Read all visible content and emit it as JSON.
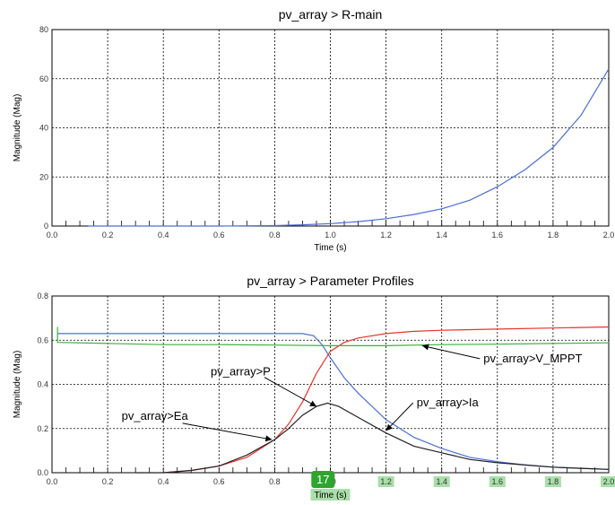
{
  "chart_data": [
    {
      "type": "line",
      "title": "pv_array > R-main",
      "xlabel": "Time (s)",
      "ylabel": "Magnitude (Mag)",
      "xlim": [
        0,
        2
      ],
      "ylim": [
        0,
        80
      ],
      "xticks": [
        "0.0",
        "0.2",
        "0.4",
        "0.6",
        "0.8",
        "1.0",
        "1.2",
        "1.4",
        "1.6",
        "1.8",
        "2.0"
      ],
      "yticks": [
        "0",
        "20",
        "40",
        "60",
        "80"
      ],
      "grid": true,
      "series": [
        {
          "color": "#4a6fd6",
          "x": [
            0.13,
            0.2,
            0.4,
            0.6,
            0.8,
            0.9,
            1.0,
            1.1,
            1.2,
            1.3,
            1.4,
            1.5,
            1.6,
            1.7,
            1.8,
            1.9,
            2.0
          ],
          "y": [
            0.0,
            0.0,
            0.0,
            0.0,
            0.2,
            0.5,
            1.0,
            1.8,
            3.0,
            4.7,
            7.0,
            10.5,
            16.0,
            23.0,
            32.0,
            45.0,
            64.0
          ]
        }
      ]
    },
    {
      "type": "line",
      "title": "pv_array > Parameter Profiles",
      "xlabel": "Time (s)",
      "ylabel": "Magnitude (Mag)",
      "xlim": [
        0,
        2
      ],
      "ylim": [
        0,
        0.8
      ],
      "xticks": [
        "0.0",
        "0.2",
        "0.4",
        "0.6",
        "0.8",
        "1.0",
        "1.2",
        "1.4",
        "1.6",
        "1.8",
        "2.0"
      ],
      "yticks": [
        "0.0",
        "0.2",
        "0.4",
        "0.6",
        "0.8"
      ],
      "grid": true,
      "series": [
        {
          "color": "#4a6fd6",
          "x": [
            0.02,
            0.2,
            0.4,
            0.6,
            0.8,
            0.9,
            0.94,
            0.97,
            1.0,
            1.05,
            1.1,
            1.2,
            1.3,
            1.4,
            1.5,
            1.6,
            1.7,
            1.8,
            1.9,
            2.0
          ],
          "y": [
            0.63,
            0.63,
            0.63,
            0.63,
            0.63,
            0.63,
            0.62,
            0.58,
            0.52,
            0.43,
            0.36,
            0.24,
            0.16,
            0.11,
            0.07,
            0.05,
            0.035,
            0.025,
            0.02,
            0.015
          ]
        },
        {
          "color": "#e8342a",
          "x": [
            0.4,
            0.5,
            0.6,
            0.7,
            0.8,
            0.85,
            0.9,
            0.95,
            1.0,
            1.05,
            1.1,
            1.2,
            1.3,
            1.4,
            1.6,
            1.8,
            2.0
          ],
          "y": [
            0.0,
            0.01,
            0.03,
            0.07,
            0.15,
            0.22,
            0.32,
            0.45,
            0.55,
            0.59,
            0.61,
            0.63,
            0.64,
            0.645,
            0.65,
            0.655,
            0.66
          ]
        },
        {
          "color": "#3db03d",
          "x": [
            0.02,
            0.02,
            0.2,
            0.4,
            0.6,
            0.8,
            1.0,
            1.2,
            1.4,
            1.6,
            1.8,
            2.0
          ],
          "y": [
            0.66,
            0.59,
            0.585,
            0.58,
            0.58,
            0.578,
            0.575,
            0.575,
            0.58,
            0.582,
            0.585,
            0.588
          ]
        },
        {
          "color": "#222222",
          "x": [
            0.3,
            0.4,
            0.5,
            0.6,
            0.7,
            0.8,
            0.85,
            0.9,
            0.95,
            0.99,
            1.03,
            1.1,
            1.2,
            1.3,
            1.4,
            1.5,
            1.6,
            1.7,
            1.8,
            1.9,
            2.0
          ],
          "y": [
            0.0,
            0.0,
            0.01,
            0.03,
            0.08,
            0.15,
            0.2,
            0.26,
            0.3,
            0.315,
            0.3,
            0.25,
            0.18,
            0.12,
            0.09,
            0.06,
            0.045,
            0.035,
            0.025,
            0.02,
            0.015
          ]
        }
      ],
      "annotations": [
        {
          "text": "pv_array>V_MPPT",
          "point": [
            1.33,
            0.575
          ],
          "label": [
            1.55,
            0.5
          ]
        },
        {
          "text": "pv_array>P",
          "point": [
            0.95,
            0.3
          ],
          "label": [
            0.57,
            0.44
          ]
        },
        {
          "text": "pv_array>Ea",
          "point": [
            0.79,
            0.15
          ],
          "label": [
            0.25,
            0.24
          ]
        },
        {
          "text": "pv_array>Ia",
          "point": [
            1.2,
            0.19
          ],
          "label": [
            1.31,
            0.3
          ]
        }
      ],
      "cursor_badge": "17"
    }
  ]
}
